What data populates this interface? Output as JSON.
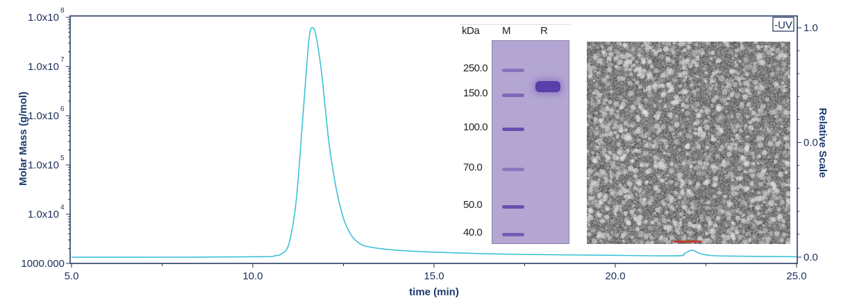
{
  "chart_data": {
    "type": "line",
    "xlabel": "time (min)",
    "ylabel_left": "Molar Mass (g/mol)",
    "ylabel_right": "Relative Scale",
    "xlim": [
      5.0,
      25.0
    ],
    "x_ticks": [
      "5.0",
      "10.0",
      "15.0",
      "20.0",
      "25.0"
    ],
    "y_left_scale": "log",
    "y_left_lim": [
      1000,
      100000000
    ],
    "y_left_ticks": [
      {
        "mant": "1.0x10",
        "exp": "8"
      },
      {
        "mant": "1.0x10",
        "exp": "7"
      },
      {
        "mant": "1.0x10",
        "exp": "6"
      },
      {
        "mant": "1.0x10",
        "exp": "5"
      },
      {
        "mant": "1.0x10",
        "exp": "4"
      },
      {
        "mant": "1000.000",
        "exp": ""
      }
    ],
    "y_right_lim": [
      0.0,
      1.0
    ],
    "y_right_ticks": [
      "1.0",
      "0.0",
      "0.0"
    ],
    "grid": false,
    "legend": {
      "label": "-UV",
      "placement": "top-right"
    },
    "series": [
      {
        "name": "-UV",
        "color": "#3cc0d8",
        "axis": "right",
        "x": [
          5.0,
          8.0,
          10.3,
          10.6,
          10.8,
          11.0,
          11.2,
          11.4,
          11.55,
          11.65,
          11.75,
          11.9,
          12.1,
          12.3,
          12.5,
          12.7,
          12.9,
          13.2,
          14.0,
          15.0,
          17.0,
          20.0,
          21.7,
          21.9,
          22.05,
          22.15,
          22.3,
          22.5,
          23.0,
          25.0
        ],
        "y": [
          0.0,
          0.0,
          0.002,
          0.006,
          0.015,
          0.06,
          0.25,
          0.65,
          0.95,
          1.0,
          0.96,
          0.8,
          0.5,
          0.3,
          0.17,
          0.1,
          0.065,
          0.045,
          0.03,
          0.022,
          0.013,
          0.008,
          0.006,
          0.015,
          0.028,
          0.03,
          0.018,
          0.01,
          0.005,
          0.002
        ]
      }
    ]
  },
  "gel_inset": {
    "unit": "kDa",
    "lanes": [
      "M",
      "R"
    ],
    "markers": [
      "250.0",
      "150.0",
      "100.0",
      "70.0",
      "50.0",
      "40.0"
    ]
  },
  "colors": {
    "axis": "#1a2e5a",
    "trace": "#3cc0d8",
    "gel": "#b3a6d2",
    "band": "#5a3fa8"
  }
}
